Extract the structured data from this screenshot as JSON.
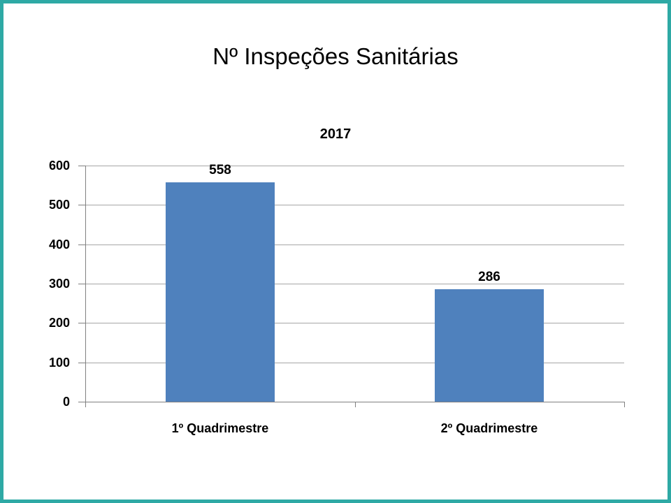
{
  "page": {
    "title": "Nº Inspeções Sanitárias",
    "border_color": "#2EA9A5",
    "background_color": "#FFFFFF"
  },
  "chart_data": {
    "type": "bar",
    "title": "2017",
    "categories": [
      "1º Quadrimestre",
      "2º Quadrimestre"
    ],
    "values": [
      558,
      286
    ],
    "data_labels": [
      "558",
      "286"
    ],
    "ylim": [
      0,
      600
    ],
    "yticks": [
      0,
      100,
      200,
      300,
      400,
      500,
      600
    ],
    "xlabel": "",
    "ylabel": "",
    "grid": true,
    "legend": "none",
    "bar_color": "#4F81BD",
    "axis_color": "#808080",
    "gridline_color": "#A6A6A6",
    "text_color": "#000000"
  }
}
